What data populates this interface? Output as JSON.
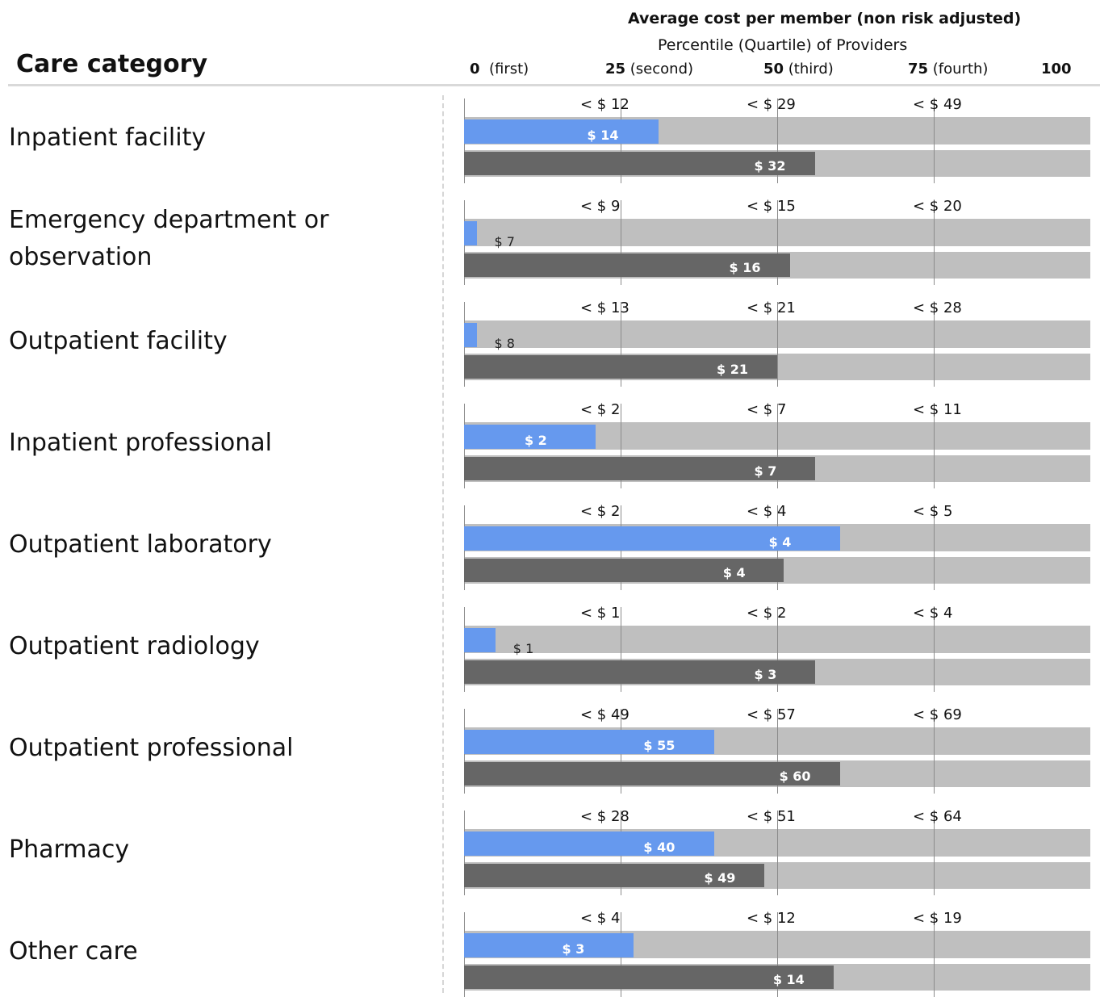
{
  "header": {
    "title": "Average cost per member (non risk adjusted)",
    "subtitle": "Percentile (Quartile) of Providers",
    "column_heading": "Care category"
  },
  "percentile_ticks": [
    {
      "num": "0",
      "name": "(first)"
    },
    {
      "num": "25",
      "name": "(second)"
    },
    {
      "num": "50",
      "name": "(third)"
    },
    {
      "num": "75",
      "name": "(fourth)"
    },
    {
      "num": "100",
      "name": ""
    }
  ],
  "colors": {
    "provider": "#6699ee",
    "comparison": "#666666",
    "track": "#bfbfbf"
  },
  "chart_data": {
    "type": "bar",
    "orientation": "horizontal",
    "x_axis": "percentile of providers",
    "xlim": [
      0,
      100
    ],
    "categories": [
      {
        "label": "Inpatient facility",
        "quartile_labels": [
          "< $ 12",
          "< $ 29",
          "< $ 49"
        ],
        "blue": {
          "label": "$ 14",
          "percentile": 31
        },
        "dark": {
          "label": "$ 32",
          "percentile": 56
        }
      },
      {
        "label": "Emergency department or observation",
        "quartile_labels": [
          "< $ 9",
          "< $ 15",
          "< $ 20"
        ],
        "blue": {
          "label": "$ 7",
          "percentile": 2
        },
        "dark": {
          "label": "$ 16",
          "percentile": 52
        }
      },
      {
        "label": "Outpatient facility",
        "quartile_labels": [
          "< $ 13",
          "< $ 21",
          "< $ 28"
        ],
        "blue": {
          "label": "$ 8",
          "percentile": 2
        },
        "dark": {
          "label": "$ 21",
          "percentile": 50
        }
      },
      {
        "label": "Inpatient professional",
        "quartile_labels": [
          "< $ 2",
          "< $ 7",
          "< $ 11"
        ],
        "blue": {
          "label": "$ 2",
          "percentile": 21
        },
        "dark": {
          "label": "$ 7",
          "percentile": 56
        }
      },
      {
        "label": "Outpatient laboratory",
        "quartile_labels": [
          "< $ 2",
          "< $ 4",
          "< $ 5"
        ],
        "blue": {
          "label": "$ 4",
          "percentile": 60
        },
        "dark": {
          "label": "$ 4",
          "percentile": 51
        }
      },
      {
        "label": "Outpatient radiology",
        "quartile_labels": [
          "< $ 1",
          "< $ 2",
          "< $ 4"
        ],
        "blue": {
          "label": "$ 1",
          "percentile": 5
        },
        "dark": {
          "label": "$ 3",
          "percentile": 56
        }
      },
      {
        "label": "Outpatient professional",
        "quartile_labels": [
          "< $ 49",
          "< $ 57",
          "< $ 69"
        ],
        "blue": {
          "label": "$ 55",
          "percentile": 40
        },
        "dark": {
          "label": "$ 60",
          "percentile": 60
        }
      },
      {
        "label": "Pharmacy",
        "quartile_labels": [
          "< $ 28",
          "< $ 51",
          "< $ 64"
        ],
        "blue": {
          "label": "$ 40",
          "percentile": 40
        },
        "dark": {
          "label": "$ 49",
          "percentile": 48
        }
      },
      {
        "label": "Other care",
        "quartile_labels": [
          "< $ 4",
          "< $ 12",
          "< $ 19"
        ],
        "blue": {
          "label": "$ 3",
          "percentile": 27
        },
        "dark": {
          "label": "$ 14",
          "percentile": 59
        }
      }
    ]
  }
}
